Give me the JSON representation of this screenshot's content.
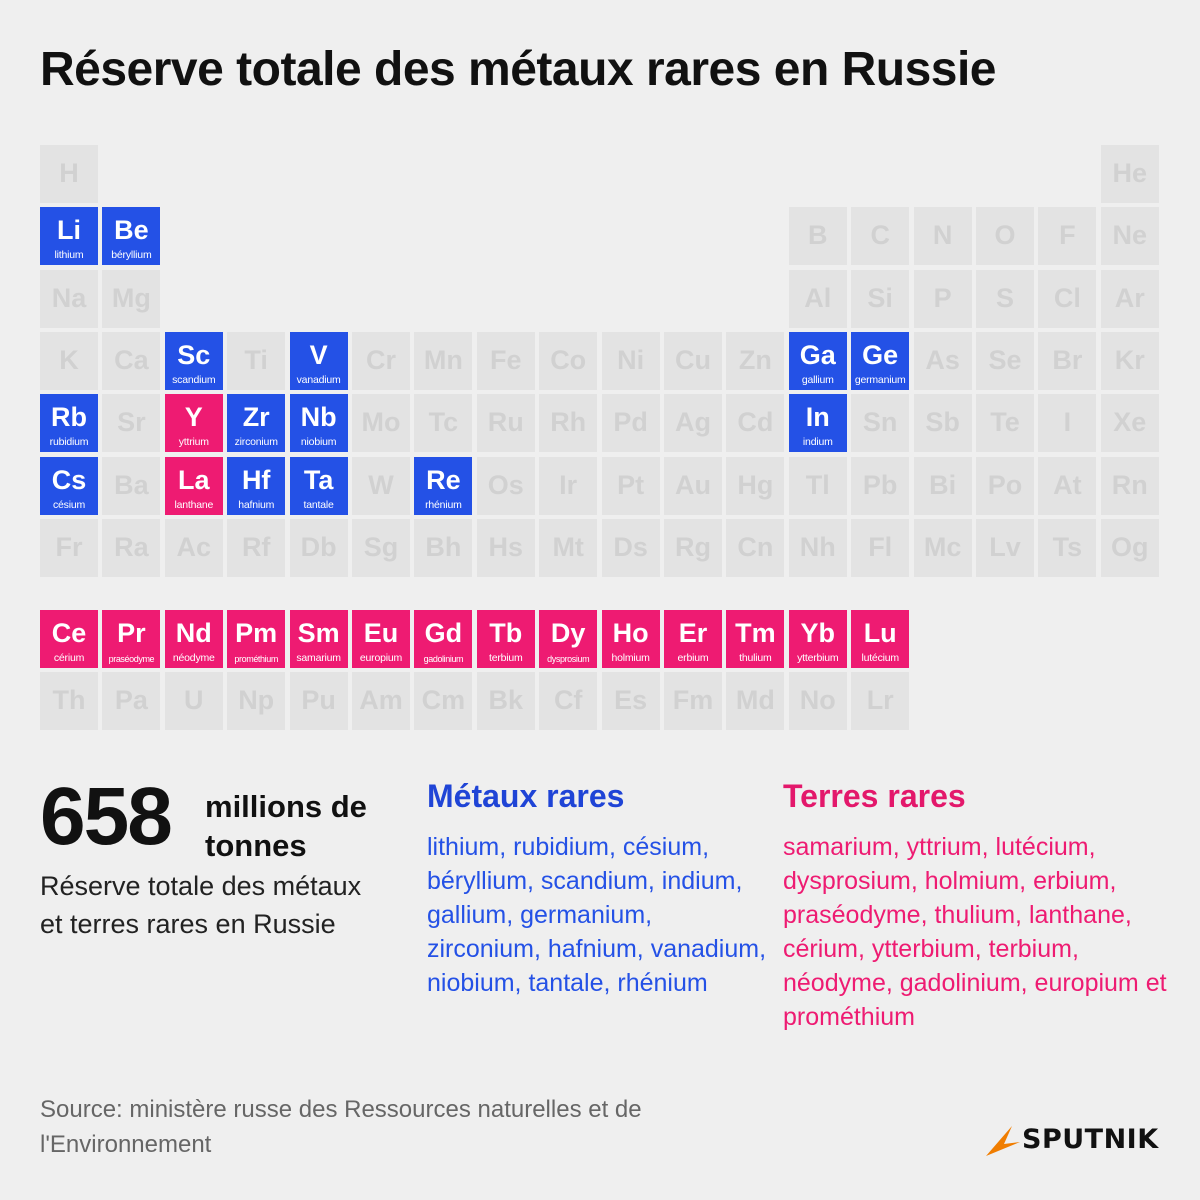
{
  "title": "Réserve totale des métaux rares en Russie",
  "colors": {
    "rare_metal": "#2451e6",
    "rare_earth": "#ee1b72",
    "inactive": "#e3e3e3",
    "inactive_text": "#d1d1d1"
  },
  "periodic_table": {
    "rows": [
      [
        {
          "symbol": "H",
          "col": 1
        },
        {
          "symbol": "He",
          "col": 18
        }
      ],
      [
        {
          "symbol": "Li",
          "col": 1,
          "name": "lithium",
          "category": "rare-metal"
        },
        {
          "symbol": "Be",
          "col": 2,
          "name": "béryllium",
          "category": "rare-metal"
        },
        {
          "symbol": "B",
          "col": 13
        },
        {
          "symbol": "C",
          "col": 14
        },
        {
          "symbol": "N",
          "col": 15
        },
        {
          "symbol": "O",
          "col": 16
        },
        {
          "symbol": "F",
          "col": 17
        },
        {
          "symbol": "Ne",
          "col": 18
        }
      ],
      [
        {
          "symbol": "Na",
          "col": 1
        },
        {
          "symbol": "Mg",
          "col": 2
        },
        {
          "symbol": "Al",
          "col": 13
        },
        {
          "symbol": "Si",
          "col": 14
        },
        {
          "symbol": "P",
          "col": 15
        },
        {
          "symbol": "S",
          "col": 16
        },
        {
          "symbol": "Cl",
          "col": 17
        },
        {
          "symbol": "Ar",
          "col": 18
        }
      ],
      [
        {
          "symbol": "K",
          "col": 1
        },
        {
          "symbol": "Ca",
          "col": 2
        },
        {
          "symbol": "Sc",
          "col": 3,
          "name": "scandium",
          "category": "rare-metal"
        },
        {
          "symbol": "Ti",
          "col": 4
        },
        {
          "symbol": "V",
          "col": 5,
          "name": "vanadium",
          "category": "rare-metal"
        },
        {
          "symbol": "Cr",
          "col": 6
        },
        {
          "symbol": "Mn",
          "col": 7
        },
        {
          "symbol": "Fe",
          "col": 8
        },
        {
          "symbol": "Co",
          "col": 9
        },
        {
          "symbol": "Ni",
          "col": 10
        },
        {
          "symbol": "Cu",
          "col": 11
        },
        {
          "symbol": "Zn",
          "col": 12
        },
        {
          "symbol": "Ga",
          "col": 13,
          "name": "gallium",
          "category": "rare-metal"
        },
        {
          "symbol": "Ge",
          "col": 14,
          "name": "germanium",
          "category": "rare-metal"
        },
        {
          "symbol": "As",
          "col": 15
        },
        {
          "symbol": "Se",
          "col": 16
        },
        {
          "symbol": "Br",
          "col": 17
        },
        {
          "symbol": "Kr",
          "col": 18
        }
      ],
      [
        {
          "symbol": "Rb",
          "col": 1,
          "name": "rubidium",
          "category": "rare-metal"
        },
        {
          "symbol": "Sr",
          "col": 2
        },
        {
          "symbol": "Y",
          "col": 3,
          "name": "yttrium",
          "category": "rare-earth"
        },
        {
          "symbol": "Zr",
          "col": 4,
          "name": "zirconium",
          "category": "rare-metal"
        },
        {
          "symbol": "Nb",
          "col": 5,
          "name": "niobium",
          "category": "rare-metal"
        },
        {
          "symbol": "Mo",
          "col": 6
        },
        {
          "symbol": "Tc",
          "col": 7
        },
        {
          "symbol": "Ru",
          "col": 8
        },
        {
          "symbol": "Rh",
          "col": 9
        },
        {
          "symbol": "Pd",
          "col": 10
        },
        {
          "symbol": "Ag",
          "col": 11
        },
        {
          "symbol": "Cd",
          "col": 12
        },
        {
          "symbol": "In",
          "col": 13,
          "name": "indium",
          "category": "rare-metal"
        },
        {
          "symbol": "Sn",
          "col": 14
        },
        {
          "symbol": "Sb",
          "col": 15
        },
        {
          "symbol": "Te",
          "col": 16
        },
        {
          "symbol": "I",
          "col": 17
        },
        {
          "symbol": "Xe",
          "col": 18
        }
      ],
      [
        {
          "symbol": "Cs",
          "col": 1,
          "name": "césium",
          "category": "rare-metal"
        },
        {
          "symbol": "Ba",
          "col": 2
        },
        {
          "symbol": "La",
          "col": 3,
          "name": "lanthane",
          "category": "rare-earth"
        },
        {
          "symbol": "Hf",
          "col": 4,
          "name": "hafnium",
          "category": "rare-metal"
        },
        {
          "symbol": "Ta",
          "col": 5,
          "name": "tantale",
          "category": "rare-metal"
        },
        {
          "symbol": "W",
          "col": 6
        },
        {
          "symbol": "Re",
          "col": 7,
          "name": "rhénium",
          "category": "rare-metal"
        },
        {
          "symbol": "Os",
          "col": 8
        },
        {
          "symbol": "Ir",
          "col": 9
        },
        {
          "symbol": "Pt",
          "col": 10
        },
        {
          "symbol": "Au",
          "col": 11
        },
        {
          "symbol": "Hg",
          "col": 12
        },
        {
          "symbol": "Tl",
          "col": 13
        },
        {
          "symbol": "Pb",
          "col": 14
        },
        {
          "symbol": "Bi",
          "col": 15
        },
        {
          "symbol": "Po",
          "col": 16
        },
        {
          "symbol": "At",
          "col": 17
        },
        {
          "symbol": "Rn",
          "col": 18
        }
      ],
      [
        {
          "symbol": "Fr",
          "col": 1
        },
        {
          "symbol": "Ra",
          "col": 2
        },
        {
          "symbol": "Ac",
          "col": 3
        },
        {
          "symbol": "Rf",
          "col": 4
        },
        {
          "symbol": "Db",
          "col": 5
        },
        {
          "symbol": "Sg",
          "col": 6
        },
        {
          "symbol": "Bh",
          "col": 7
        },
        {
          "symbol": "Hs",
          "col": 8
        },
        {
          "symbol": "Mt",
          "col": 9
        },
        {
          "symbol": "Ds",
          "col": 10
        },
        {
          "symbol": "Rg",
          "col": 11
        },
        {
          "symbol": "Cn",
          "col": 12
        },
        {
          "symbol": "Nh",
          "col": 13
        },
        {
          "symbol": "Fl",
          "col": 14
        },
        {
          "symbol": "Mc",
          "col": 15
        },
        {
          "symbol": "Lv",
          "col": 16
        },
        {
          "symbol": "Ts",
          "col": 17
        },
        {
          "symbol": "Og",
          "col": 18
        }
      ]
    ],
    "lanthanides": [
      {
        "symbol": "Ce",
        "name": "cérium",
        "category": "rare-earth"
      },
      {
        "symbol": "Pr",
        "name": "praséodyme",
        "category": "rare-earth"
      },
      {
        "symbol": "Nd",
        "name": "néodyme",
        "category": "rare-earth"
      },
      {
        "symbol": "Pm",
        "name": "prométhium",
        "category": "rare-earth"
      },
      {
        "symbol": "Sm",
        "name": "samarium",
        "category": "rare-earth"
      },
      {
        "symbol": "Eu",
        "name": "europium",
        "category": "rare-earth"
      },
      {
        "symbol": "Gd",
        "name": "gadolinium",
        "category": "rare-earth"
      },
      {
        "symbol": "Tb",
        "name": "terbium",
        "category": "rare-earth"
      },
      {
        "symbol": "Dy",
        "name": "dysprosium",
        "category": "rare-earth"
      },
      {
        "symbol": "Ho",
        "name": "holmium",
        "category": "rare-earth"
      },
      {
        "symbol": "Er",
        "name": "erbium",
        "category": "rare-earth"
      },
      {
        "symbol": "Tm",
        "name": "thulium",
        "category": "rare-earth"
      },
      {
        "symbol": "Yb",
        "name": "ytterbium",
        "category": "rare-earth"
      },
      {
        "symbol": "Lu",
        "name": "lutécium",
        "category": "rare-earth"
      }
    ],
    "actinides": [
      {
        "symbol": "Th"
      },
      {
        "symbol": "Pa"
      },
      {
        "symbol": "U"
      },
      {
        "symbol": "Np"
      },
      {
        "symbol": "Pu"
      },
      {
        "symbol": "Am"
      },
      {
        "symbol": "Cm"
      },
      {
        "symbol": "Bk"
      },
      {
        "symbol": "Cf"
      },
      {
        "symbol": "Es"
      },
      {
        "symbol": "Fm"
      },
      {
        "symbol": "Md"
      },
      {
        "symbol": "No"
      },
      {
        "symbol": "Lr"
      }
    ]
  },
  "stat": {
    "number": "658",
    "unit": "millions de tonnes",
    "caption": "Réserve totale des métaux et terres rares en Russie"
  },
  "rare_metals": {
    "heading": "Métaux rares",
    "list": "lithium, rubidium, césium, béryllium, scandium, indium, gallium, germanium, zirconium, hafnium, vanadium, niobium, tantale, rhénium"
  },
  "rare_earths": {
    "heading": "Terres rares",
    "list": "samarium, yttrium, lutécium, dysprosium, holmium, erbium, praséodyme, thulium, lanthane, cérium, ytterbium, terbium, néodyme, gadolinium, europium et prométhium"
  },
  "source": "Source: ministère russe des Ressources naturelles et de l'Environnement",
  "logo": {
    "icon": "sputnik-logo-icon",
    "text": "SPUTNIK",
    "color": "#f07d00"
  }
}
